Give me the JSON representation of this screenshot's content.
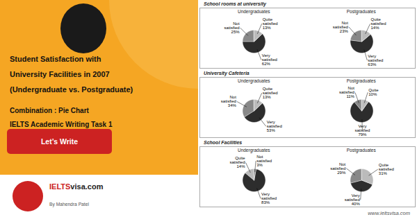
{
  "title": "Student Satisfaction with\nUniversity Facilities in 2007\n(Undergraduate vs. Postgraduate)",
  "subtitle": "Combination : Pie Chart\nIELTS Academic Writing Task 1",
  "annotations": [
    "Let’s Write",
    "IELTS",
    "visa.com",
    "By Mahendra Patel",
    "www.ieltsvisa.com"
  ],
  "chart_data": [
    {
      "title": "School rooms at university",
      "chart_data": [
        {
          "type": "pie",
          "title": "Undergraduates",
          "values": [
            25,
            62,
            13
          ],
          "value_labels": [
            "Not\nsatisfied\n25%",
            "Very\nsatisfied\n62%",
            "Quite\nsatisfied\n13%"
          ],
          "colors": [
            "#888888",
            "#2d2d2d",
            "#bbbbbb"
          ],
          "data_labels": true
        },
        {
          "type": "pie",
          "title": "Postgraduates",
          "values": [
            23,
            63,
            14
          ],
          "value_labels": [
            "Not\nsatisfied\n23%",
            "Very\nsatisfied\n63%",
            "Quite\nsatisfied\n14%"
          ],
          "colors": [
            "#888888",
            "#2d2d2d",
            "#bbbbbb"
          ],
          "data_labels": true
        }
      ]
    },
    {
      "title": "University Cafeteria",
      "chart_data": [
        {
          "type": "pie",
          "title": "Undergraduates",
          "values": [
            34,
            53,
            13
          ],
          "value_labels": [
            "Not\nsatisfied\n34%",
            "Very\nsatisfied\n53%",
            "Quite\nsatisfied\n13%"
          ],
          "colors": [
            "#888888",
            "#2d2d2d",
            "#bbbbbb"
          ],
          "data_labels": true
        },
        {
          "type": "pie",
          "title": "Postgraduates",
          "values": [
            11,
            79,
            10
          ],
          "value_labels": [
            "Not\nsatisfied\n11%",
            "Very\nsatisfied\n79%",
            "Quite\n10%"
          ],
          "colors": [
            "#888888",
            "#2d2d2d",
            "#bbbbbb"
          ],
          "data_labels": true
        }
      ]
    },
    {
      "title": "School Facilities",
      "chart_data": [
        {
          "type": "pie",
          "title": "Undergraduates",
          "values": [
            14,
            83,
            3
          ],
          "value_labels": [
            "Quite\nsatisfied\n14%",
            "Very\nsatisfied\n83%",
            "Not\nsatisfied\n3%"
          ],
          "colors": [
            "#bbbbbb",
            "#2d2d2d",
            "#888888"
          ],
          "data_labels": true
        },
        {
          "type": "pie",
          "title": "Postgraduates",
          "values": [
            29,
            40,
            31
          ],
          "value_labels": [
            "Not\nsatisfied\n29%",
            "Very\nsatisfied\n40%",
            "Quite\nsatisfied\n31%"
          ],
          "colors": [
            "#888888",
            "#2d2d2d",
            "#bbbbbb"
          ],
          "data_labels": true
        }
      ]
    }
  ]
}
